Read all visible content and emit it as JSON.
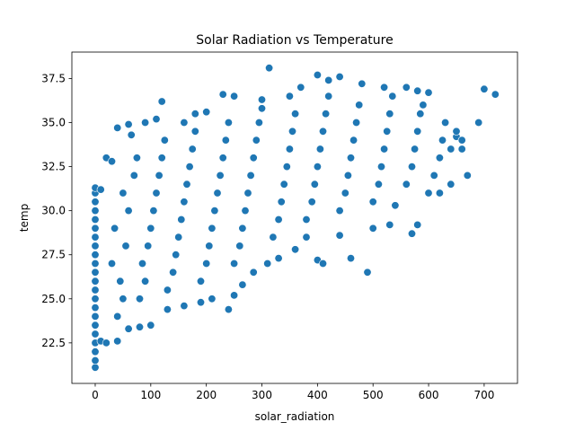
{
  "chart_data": {
    "type": "scatter",
    "title": "Solar Radiation vs Temperature",
    "xlabel": "solar_radiation",
    "ylabel": "temp",
    "xlim": [
      -42,
      760
    ],
    "ylim": [
      20.2,
      39.0
    ],
    "xticks": [
      0,
      100,
      200,
      300,
      400,
      500,
      600,
      700
    ],
    "xtick_labels": [
      "0",
      "100",
      "200",
      "300",
      "400",
      "500",
      "600",
      "700"
    ],
    "yticks": [
      22.5,
      25.0,
      27.5,
      30.0,
      32.5,
      35.0,
      37.5
    ],
    "ytick_labels": [
      "22.5",
      "25.0",
      "27.5",
      "30.0",
      "32.5",
      "35.0",
      "37.5"
    ],
    "grid": false,
    "marker_color": "#1f77b4",
    "marker_edge_color": "#ffffff",
    "series": [
      {
        "points": [
          [
            0,
            21.1
          ],
          [
            0,
            21.5
          ],
          [
            0,
            22.0
          ],
          [
            0,
            22.5
          ],
          [
            0,
            23.0
          ],
          [
            0,
            23.5
          ],
          [
            0,
            24.0
          ],
          [
            0,
            24.5
          ],
          [
            0,
            25.0
          ],
          [
            0,
            25.5
          ],
          [
            0,
            26.0
          ],
          [
            0,
            26.5
          ],
          [
            0,
            27.0
          ],
          [
            0,
            27.5
          ],
          [
            0,
            28.0
          ],
          [
            0,
            28.5
          ],
          [
            0,
            29.0
          ],
          [
            0,
            29.5
          ],
          [
            0,
            30.0
          ],
          [
            0,
            30.5
          ],
          [
            0,
            31.0
          ],
          [
            0,
            31.3
          ],
          [
            10,
            22.6
          ],
          [
            20,
            22.5
          ],
          [
            40,
            22.6
          ],
          [
            60,
            23.3
          ],
          [
            80,
            23.4
          ],
          [
            100,
            23.5
          ],
          [
            130,
            24.4
          ],
          [
            160,
            24.6
          ],
          [
            190,
            24.8
          ],
          [
            210,
            25.0
          ],
          [
            240,
            24.4
          ],
          [
            250,
            25.2
          ],
          [
            265,
            25.8
          ],
          [
            285,
            26.5
          ],
          [
            310,
            27.0
          ],
          [
            330,
            27.3
          ],
          [
            360,
            27.8
          ],
          [
            400,
            27.2
          ],
          [
            410,
            27.0
          ],
          [
            460,
            27.3
          ],
          [
            490,
            26.5
          ],
          [
            380,
            28.5
          ],
          [
            440,
            28.6
          ],
          [
            500,
            29.0
          ],
          [
            530,
            29.2
          ],
          [
            570,
            28.7
          ],
          [
            580,
            29.2
          ],
          [
            540,
            30.3
          ],
          [
            600,
            31.0
          ],
          [
            620,
            31.0
          ],
          [
            640,
            31.5
          ],
          [
            670,
            32.0
          ],
          [
            700,
            36.9
          ],
          [
            720,
            36.6
          ],
          [
            690,
            35.0
          ],
          [
            660,
            33.5
          ],
          [
            650,
            34.2
          ],
          [
            600,
            36.7
          ],
          [
            580,
            36.8
          ],
          [
            560,
            37.0
          ],
          [
            520,
            37.0
          ],
          [
            480,
            37.2
          ],
          [
            440,
            37.6
          ],
          [
            420,
            37.4
          ],
          [
            400,
            37.7
          ],
          [
            370,
            37.0
          ],
          [
            350,
            36.5
          ],
          [
            313,
            38.1
          ],
          [
            300,
            36.3
          ],
          [
            250,
            36.5
          ],
          [
            230,
            36.6
          ],
          [
            200,
            35.6
          ],
          [
            180,
            35.5
          ],
          [
            160,
            35.0
          ],
          [
            120,
            36.2
          ],
          [
            110,
            35.2
          ],
          [
            90,
            35.0
          ],
          [
            60,
            34.9
          ],
          [
            40,
            34.7
          ],
          [
            65,
            34.3
          ],
          [
            20,
            33.0
          ],
          [
            30,
            32.8
          ],
          [
            10,
            31.2
          ],
          [
            40,
            24.0
          ],
          [
            50,
            25.0
          ],
          [
            45,
            26.0
          ],
          [
            30,
            27.0
          ],
          [
            55,
            28.0
          ],
          [
            35,
            29.0
          ],
          [
            60,
            30.0
          ],
          [
            50,
            31.0
          ],
          [
            70,
            32.0
          ],
          [
            75,
            33.0
          ],
          [
            80,
            25.0
          ],
          [
            90,
            26.0
          ],
          [
            85,
            27.0
          ],
          [
            95,
            28.0
          ],
          [
            100,
            29.0
          ],
          [
            105,
            30.0
          ],
          [
            110,
            31.0
          ],
          [
            115,
            32.0
          ],
          [
            120,
            33.0
          ],
          [
            125,
            34.0
          ],
          [
            130,
            25.5
          ],
          [
            140,
            26.5
          ],
          [
            145,
            27.5
          ],
          [
            150,
            28.5
          ],
          [
            155,
            29.5
          ],
          [
            160,
            30.5
          ],
          [
            165,
            31.5
          ],
          [
            170,
            32.5
          ],
          [
            175,
            33.5
          ],
          [
            180,
            34.5
          ],
          [
            190,
            26.0
          ],
          [
            200,
            27.0
          ],
          [
            205,
            28.0
          ],
          [
            210,
            29.0
          ],
          [
            215,
            30.0
          ],
          [
            220,
            31.0
          ],
          [
            225,
            32.0
          ],
          [
            230,
            33.0
          ],
          [
            235,
            34.0
          ],
          [
            240,
            35.0
          ],
          [
            250,
            27.0
          ],
          [
            260,
            28.0
          ],
          [
            265,
            29.0
          ],
          [
            270,
            30.0
          ],
          [
            275,
            31.0
          ],
          [
            280,
            32.0
          ],
          [
            285,
            33.0
          ],
          [
            290,
            34.0
          ],
          [
            295,
            35.0
          ],
          [
            300,
            35.8
          ],
          [
            320,
            28.5
          ],
          [
            330,
            29.5
          ],
          [
            335,
            30.5
          ],
          [
            340,
            31.5
          ],
          [
            345,
            32.5
          ],
          [
            350,
            33.5
          ],
          [
            355,
            34.5
          ],
          [
            360,
            35.5
          ],
          [
            380,
            29.5
          ],
          [
            390,
            30.5
          ],
          [
            395,
            31.5
          ],
          [
            400,
            32.5
          ],
          [
            405,
            33.5
          ],
          [
            410,
            34.5
          ],
          [
            415,
            35.5
          ],
          [
            420,
            36.5
          ],
          [
            440,
            30.0
          ],
          [
            450,
            31.0
          ],
          [
            455,
            32.0
          ],
          [
            460,
            33.0
          ],
          [
            465,
            34.0
          ],
          [
            470,
            35.0
          ],
          [
            475,
            36.0
          ],
          [
            500,
            30.5
          ],
          [
            510,
            31.5
          ],
          [
            515,
            32.5
          ],
          [
            520,
            33.5
          ],
          [
            525,
            34.5
          ],
          [
            530,
            35.5
          ],
          [
            535,
            36.5
          ],
          [
            560,
            31.5
          ],
          [
            570,
            32.5
          ],
          [
            575,
            33.5
          ],
          [
            580,
            34.5
          ],
          [
            585,
            35.5
          ],
          [
            590,
            36.0
          ],
          [
            610,
            32.0
          ],
          [
            620,
            33.0
          ],
          [
            625,
            34.0
          ],
          [
            630,
            35.0
          ],
          [
            640,
            33.5
          ],
          [
            650,
            34.5
          ],
          [
            660,
            34.0
          ]
        ]
      }
    ]
  }
}
